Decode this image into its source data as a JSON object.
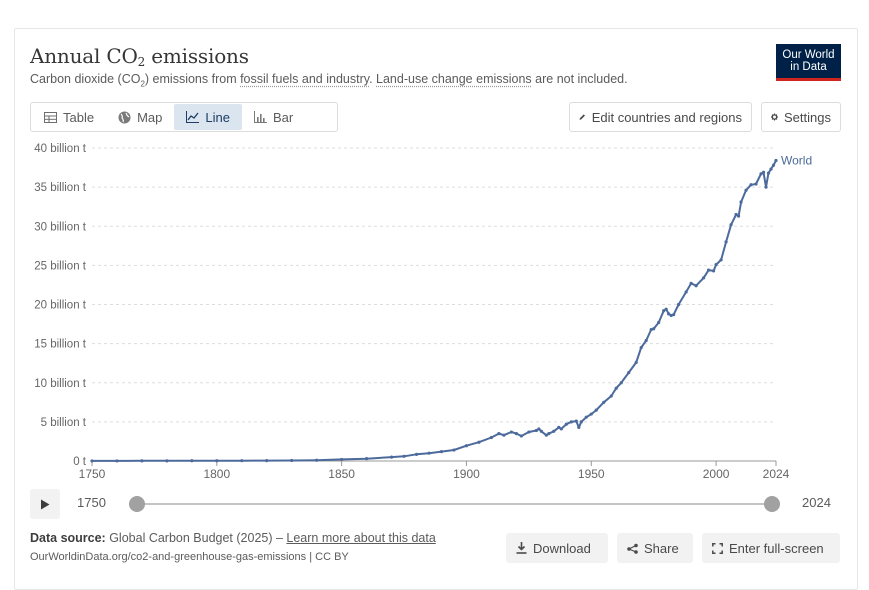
{
  "header": {
    "title_main": "Annual CO",
    "title_sub": "2",
    "title_tail": " emissions",
    "subtitle_a": "Carbon dioxide (CO",
    "subtitle_sub": "2",
    "subtitle_b": ") emissions from ",
    "subtitle_link1": "fossil fuels and industry",
    "subtitle_c": ". ",
    "subtitle_link2": "Land-use change emissions",
    "subtitle_d": " are not included.",
    "logo_line1": "Our World",
    "logo_line2": "in Data"
  },
  "tabs": [
    {
      "label": "Table",
      "icon": "table-icon",
      "active": false
    },
    {
      "label": "Map",
      "icon": "globe-icon",
      "active": false
    },
    {
      "label": "Line",
      "icon": "line-chart-icon",
      "active": true
    },
    {
      "label": "Bar",
      "icon": "bar-chart-icon",
      "active": false
    }
  ],
  "toolbar": {
    "edit_label": "Edit countries and regions",
    "settings_label": "Settings"
  },
  "colors": {
    "series": "#4c6a9c",
    "accent_tab": "#dbe5f0",
    "logo_bg": "#002147",
    "logo_bar": "#ce261e"
  },
  "chart_data": {
    "type": "line",
    "title": "Annual CO₂ emissions",
    "x_ticks": [
      "1750",
      "1800",
      "1850",
      "1900",
      "1950",
      "2000",
      "2024"
    ],
    "y_ticks": [
      "0 t",
      "5 billion t",
      "10 billion t",
      "15 billion t",
      "20 billion t",
      "25 billion t",
      "30 billion t",
      "35 billion t",
      "40 billion t"
    ],
    "xlim": [
      1750,
      2024
    ],
    "ylim": [
      0,
      40
    ],
    "y_unit": "billion t",
    "grid": "horizontal dashed",
    "series": [
      {
        "name": "World",
        "x": [
          1750,
          1760,
          1770,
          1780,
          1790,
          1800,
          1810,
          1820,
          1830,
          1840,
          1850,
          1860,
          1870,
          1875,
          1880,
          1885,
          1890,
          1895,
          1900,
          1905,
          1910,
          1913,
          1915,
          1918,
          1920,
          1922,
          1925,
          1928,
          1929,
          1930,
          1932,
          1933,
          1935,
          1937,
          1938,
          1940,
          1942,
          1944,
          1945,
          1946,
          1948,
          1950,
          1952,
          1955,
          1958,
          1960,
          1962,
          1965,
          1968,
          1970,
          1972,
          1974,
          1975,
          1977,
          1979,
          1980,
          1981,
          1982,
          1983,
          1985,
          1988,
          1990,
          1992,
          1995,
          1997,
          1999,
          2000,
          2002,
          2004,
          2006,
          2008,
          2009,
          2010,
          2012,
          2014,
          2016,
          2018,
          2019,
          2020,
          2021,
          2022,
          2023,
          2024
        ],
        "y": [
          0.01,
          0.01,
          0.02,
          0.02,
          0.03,
          0.03,
          0.04,
          0.05,
          0.07,
          0.1,
          0.2,
          0.3,
          0.5,
          0.6,
          0.85,
          1.0,
          1.2,
          1.4,
          1.95,
          2.4,
          3.0,
          3.5,
          3.3,
          3.7,
          3.5,
          3.2,
          3.7,
          3.9,
          4.1,
          3.8,
          3.3,
          3.5,
          3.8,
          4.3,
          4.1,
          4.7,
          5.0,
          5.1,
          4.3,
          5.0,
          5.6,
          6.0,
          6.5,
          7.5,
          8.3,
          9.3,
          10.0,
          11.3,
          12.6,
          14.5,
          15.4,
          16.8,
          16.9,
          17.7,
          19.2,
          19.4,
          18.8,
          18.6,
          18.7,
          20.0,
          21.6,
          22.7,
          22.4,
          23.4,
          24.4,
          24.3,
          25.1,
          25.7,
          28.0,
          30.2,
          31.5,
          31.3,
          33.1,
          34.6,
          35.3,
          35.4,
          36.7,
          36.9,
          35.0,
          36.8,
          37.3,
          37.8,
          38.4
        ]
      }
    ],
    "end_label": "World"
  },
  "timeline": {
    "start_label": "1750",
    "end_label": "2024",
    "start_value": 1750,
    "end_value": 2024
  },
  "footer": {
    "source_label": "Data source:",
    "source_text": " Global Carbon Budget (2025) – ",
    "learn_more": "Learn more about this data",
    "url": "OurWorldinData.org/co2-and-greenhouse-gas-emissions | CC BY",
    "download_label": "Download",
    "share_label": "Share",
    "fullscreen_label": "Enter full-screen"
  }
}
